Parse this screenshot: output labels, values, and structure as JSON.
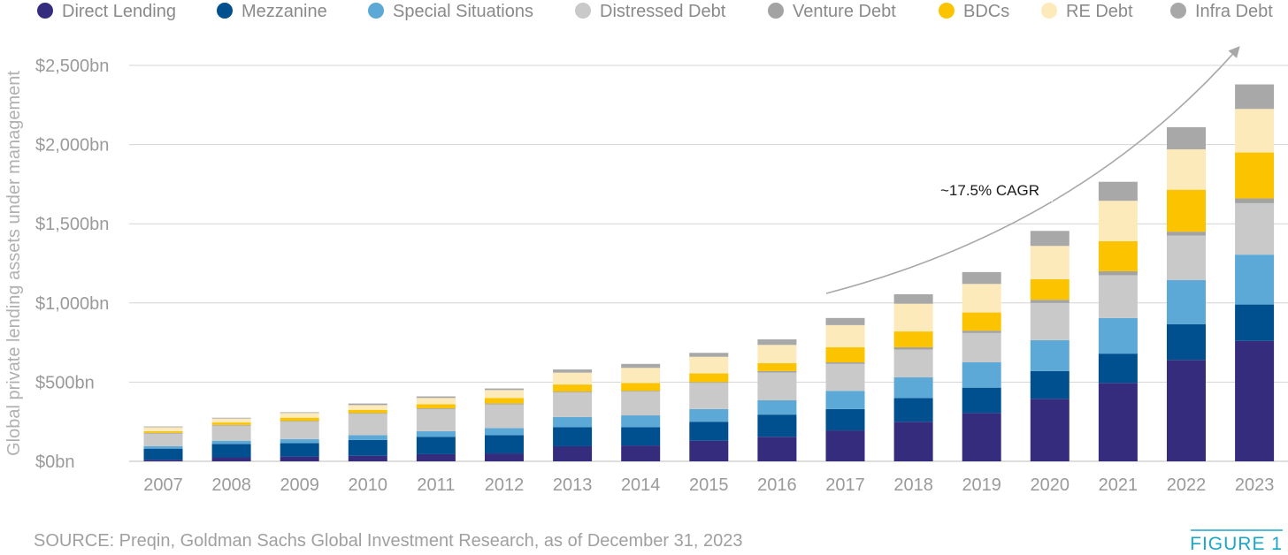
{
  "chart_data": {
    "type": "bar",
    "stacked": true,
    "ylabel": "Global private lending assets under management",
    "ylim": [
      0,
      2500
    ],
    "yticks": [
      0,
      500,
      1000,
      1500,
      2000,
      2500
    ],
    "ytick_labels": [
      "$0bn",
      "$500bn",
      "$1,000bn",
      "$1,500bn",
      "$2,000bn",
      "$2,500bn"
    ],
    "grid": true,
    "legend_position": "top",
    "categories": [
      "2007",
      "2008",
      "2009",
      "2010",
      "2011",
      "2012",
      "2013",
      "2014",
      "2015",
      "2016",
      "2017",
      "2018",
      "2019",
      "2020",
      "2021",
      "2022",
      "2023"
    ],
    "series": [
      {
        "name": "Direct Lending",
        "color": "#352c7d",
        "values": [
          10,
          25,
          30,
          35,
          45,
          50,
          95,
          100,
          130,
          155,
          195,
          250,
          305,
          395,
          495,
          640,
          760
        ]
      },
      {
        "name": "Mezzanine",
        "color": "#00508f",
        "values": [
          70,
          85,
          85,
          100,
          110,
          115,
          120,
          115,
          120,
          140,
          135,
          150,
          160,
          175,
          185,
          225,
          230
        ]
      },
      {
        "name": "Special Situations",
        "color": "#5ca8d6",
        "values": [
          15,
          20,
          25,
          30,
          35,
          45,
          65,
          75,
          80,
          90,
          115,
          130,
          160,
          195,
          225,
          280,
          315
        ]
      },
      {
        "name": "Distressed Debt",
        "color": "#c9c9c9",
        "values": [
          80,
          95,
          110,
          135,
          140,
          150,
          155,
          150,
          165,
          175,
          170,
          175,
          185,
          235,
          270,
          280,
          325
        ]
      },
      {
        "name": "Venture Debt",
        "color": "#a3a3a3",
        "values": [
          5,
          5,
          5,
          5,
          5,
          5,
          5,
          5,
          5,
          10,
          10,
          15,
          15,
          20,
          25,
          25,
          30
        ]
      },
      {
        "name": "BDCs",
        "color": "#fcc400",
        "values": [
          10,
          15,
          20,
          20,
          25,
          35,
          45,
          50,
          55,
          50,
          95,
          100,
          115,
          130,
          190,
          265,
          290
        ]
      },
      {
        "name": "RE Debt",
        "color": "#fdeabb",
        "values": [
          25,
          25,
          30,
          30,
          40,
          50,
          75,
          95,
          105,
          115,
          140,
          175,
          180,
          210,
          255,
          255,
          275
        ]
      },
      {
        "name": "Infra Debt",
        "color": "#a8a8a8",
        "values": [
          5,
          5,
          5,
          10,
          10,
          10,
          20,
          25,
          25,
          35,
          45,
          60,
          75,
          95,
          120,
          140,
          155
        ]
      }
    ],
    "annotation": "~17.5% CAGR",
    "source": "SOURCE: Preqin, Goldman Sachs Global Investment Research, as of December 31, 2023",
    "figure_label": "FIGURE 1"
  }
}
